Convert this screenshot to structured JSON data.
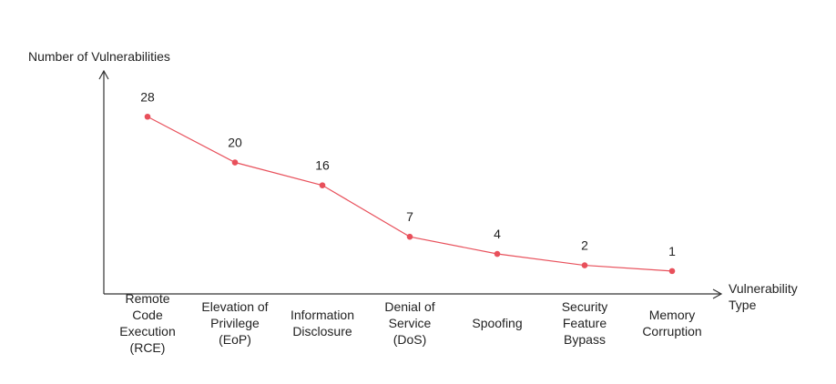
{
  "chart_data": {
    "type": "line",
    "title": "",
    "ylabel": "Number of Vulnerabilities",
    "xlabel": "Vulnerability\nType",
    "categories": [
      "Remote\nCode\nExecution\n(RCE)",
      "Elevation of\nPrivilege\n(EoP)",
      "Information\nDisclosure",
      "Denial of\nService\n(DoS)",
      "Spoofing",
      "Security\nFeature\nBypass",
      "Memory\nCorruption"
    ],
    "series": [
      {
        "values": [
          28,
          20,
          16,
          7,
          4,
          2,
          1
        ],
        "color": "#e8505b"
      }
    ],
    "ylim": [
      -3,
      36
    ],
    "grid": false,
    "legend": "none"
  }
}
